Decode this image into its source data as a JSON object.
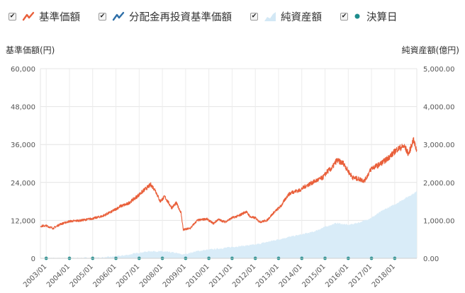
{
  "legend": {
    "items": [
      {
        "label": "基準価額",
        "checked": true,
        "color": "#e9603b",
        "icon": "line-icon"
      },
      {
        "label": "分配金再投資基準価額",
        "checked": true,
        "color": "#2e6fa8",
        "icon": "line-icon"
      },
      {
        "label": "純資産額",
        "checked": true,
        "color": "#c9e2f2",
        "icon": "area-icon"
      },
      {
        "label": "決算日",
        "checked": true,
        "color": "#1d8c8c",
        "icon": "dot-icon"
      }
    ]
  },
  "chart_data": {
    "type": "line",
    "title": "",
    "left_axis_label": "基準価額(円)",
    "right_axis_label": "純資産額(億円)",
    "left_ticks": [
      "0",
      "12,000",
      "24,000",
      "36,000",
      "48,000",
      "60,000"
    ],
    "right_ticks": [
      "0.00",
      "1,000.00",
      "2,000.00",
      "3,000.00",
      "4,000.00",
      "5,000.00"
    ],
    "x_ticks": [
      "2003/01",
      "2004/01",
      "2005/01",
      "2006/01",
      "2007/01",
      "2008/01",
      "2009/01",
      "2010/01",
      "2011/01",
      "2012/01",
      "2013/01",
      "2014/01",
      "2015/01",
      "2016/01",
      "2017/01",
      "2018/01"
    ],
    "ylim_left": [
      0,
      60000
    ],
    "ylim_right": [
      0,
      5000
    ],
    "xlim": [
      2002.75,
      2018.95
    ],
    "grid": true,
    "series": [
      {
        "name": "基準価額",
        "axis": "left",
        "color": "#e9603b",
        "x": [
          2002.75,
          2003.0,
          2003.3,
          2003.6,
          2004.0,
          2004.5,
          2005.0,
          2005.4,
          2005.8,
          2006.2,
          2006.5,
          2006.9,
          2007.2,
          2007.5,
          2007.7,
          2007.9,
          2008.1,
          2008.4,
          2008.6,
          2008.8,
          2008.9,
          2009.2,
          2009.5,
          2009.9,
          2010.2,
          2010.4,
          2010.7,
          2011.0,
          2011.3,
          2011.6,
          2011.8,
          2012.0,
          2012.2,
          2012.5,
          2012.8,
          2013.1,
          2013.4,
          2013.6,
          2013.9,
          2014.2,
          2014.6,
          2014.9,
          2015.1,
          2015.3,
          2015.5,
          2015.8,
          2016.0,
          2016.2,
          2016.5,
          2016.7,
          2017.0,
          2017.3,
          2017.6,
          2017.9,
          2018.1,
          2018.4,
          2018.6,
          2018.8,
          2018.95
        ],
        "values": [
          10200,
          10300,
          9500,
          10800,
          11700,
          12000,
          12600,
          13300,
          14700,
          16500,
          17200,
          19500,
          21500,
          23300,
          21500,
          18000,
          19500,
          16000,
          17500,
          14500,
          9000,
          9500,
          12000,
          12500,
          11000,
          12300,
          11500,
          12800,
          13500,
          14800,
          13000,
          12800,
          11500,
          12000,
          14500,
          16500,
          20000,
          21000,
          21500,
          23000,
          24500,
          25500,
          27500,
          28500,
          31000,
          30000,
          27500,
          25500,
          25000,
          24500,
          28500,
          29500,
          31000,
          33000,
          34500,
          35500,
          33000,
          37500,
          34000
        ]
      },
      {
        "name": "純資産額",
        "axis": "right",
        "color": "#d9ecf8",
        "x": [
          2002.75,
          2004.0,
          2005.0,
          2005.5,
          2006.0,
          2006.5,
          2007.0,
          2007.5,
          2008.0,
          2008.5,
          2008.9,
          2009.5,
          2010.0,
          2010.5,
          2011.0,
          2011.5,
          2012.0,
          2012.5,
          2013.0,
          2013.5,
          2014.0,
          2014.5,
          2015.0,
          2015.5,
          2016.0,
          2016.5,
          2017.0,
          2017.5,
          2018.0,
          2018.5,
          2018.95
        ],
        "values": [
          0,
          5,
          15,
          25,
          50,
          90,
          150,
          190,
          180,
          150,
          100,
          190,
          230,
          260,
          300,
          330,
          360,
          430,
          500,
          570,
          630,
          700,
          830,
          930,
          880,
          950,
          1070,
          1270,
          1420,
          1600,
          1760
        ]
      }
    ],
    "settlement_dates": [
      "2003/01",
      "2004/01",
      "2005/01",
      "2006/01",
      "2007/01",
      "2008/01",
      "2009/01",
      "2010/01",
      "2011/01",
      "2012/01",
      "2013/01",
      "2014/01",
      "2015/01",
      "2016/01",
      "2017/01",
      "2018/01"
    ],
    "settlement_color": "#1d8c8c"
  }
}
